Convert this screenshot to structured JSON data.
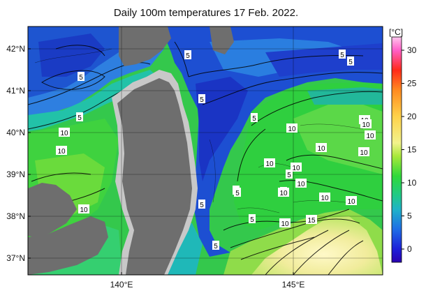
{
  "title": "Daily 100m temperatures 17 Feb. 2022.",
  "colorbar": {
    "unit_label": "[°C]",
    "ticks": [
      "30",
      "25",
      "20",
      "15",
      "10",
      "5",
      "0"
    ],
    "tick_values": [
      30,
      25,
      20,
      15,
      10,
      5,
      0
    ],
    "min": -2,
    "max": 32,
    "stops": [
      {
        "v": -2,
        "c": "#2a00b0"
      },
      {
        "v": 0,
        "c": "#1d1fd9"
      },
      {
        "v": 3,
        "c": "#1f6ee6"
      },
      {
        "v": 6,
        "c": "#1fb3c8"
      },
      {
        "v": 8,
        "c": "#20c98a"
      },
      {
        "v": 11,
        "c": "#2fd93a"
      },
      {
        "v": 14,
        "c": "#a8e83a"
      },
      {
        "v": 16,
        "c": "#f2f28c"
      },
      {
        "v": 20,
        "c": "#ffd24a"
      },
      {
        "v": 24,
        "c": "#ff8a1f"
      },
      {
        "v": 27,
        "c": "#ff2a1a"
      },
      {
        "v": 30,
        "c": "#ff5fc8"
      },
      {
        "v": 32,
        "c": "#ffc6ee"
      }
    ]
  },
  "axes": {
    "lat_labels": [
      "42°N",
      "41°N",
      "40°N",
      "39°N",
      "38°N",
      "37°N"
    ],
    "lon_labels": [
      "140°E",
      "145°E"
    ]
  },
  "contour_labels": [
    "5",
    "5",
    "5",
    "5",
    "5",
    "5",
    "5",
    "5",
    "5",
    "5",
    "5",
    "5",
    "5",
    "5",
    "10",
    "10",
    "10",
    "10",
    "10",
    "10",
    "10",
    "10",
    "10",
    "10",
    "10",
    "10",
    "10",
    "10",
    "10",
    "10",
    "15"
  ],
  "map_colors": {
    "land": "#6e6e6e",
    "shelf": "#c8c8c8",
    "cold": "#1a34c8",
    "cool": "#2f86e0",
    "warm": "#35c94a",
    "kuroshio": "#f4f0a8"
  }
}
